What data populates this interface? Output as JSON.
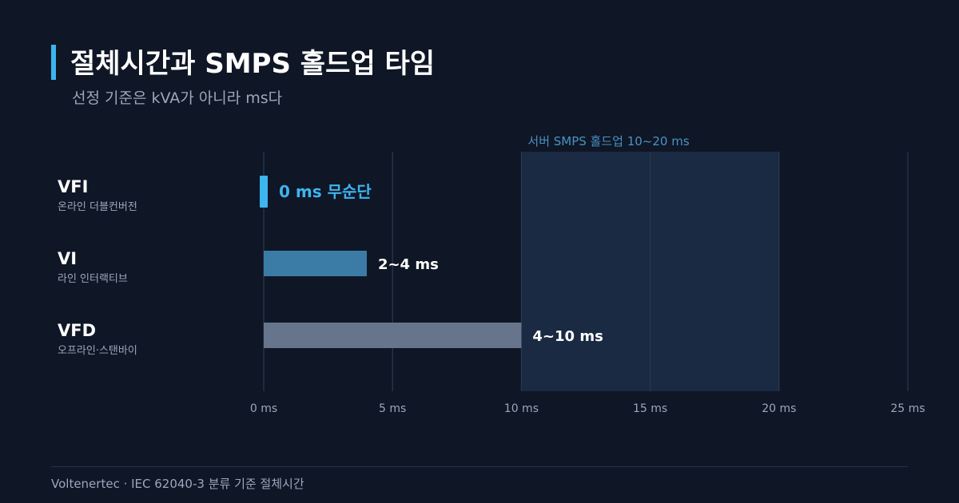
{
  "header": {
    "title": "절체시간과 SMPS 홀드업 타임",
    "subtitle": "선정 기준은 kVA가 아니라 ms다"
  },
  "footer": {
    "text": "Voltenertec · IEC 62040-3 분류 기준 절체시간"
  },
  "colors": {
    "background": "#0f1626",
    "accent": "#3db5ef",
    "band": "#1a2a42",
    "band_label": "#4a93c4",
    "grid": "#2c3950",
    "tick": "#9aa8bb",
    "vfi": "#3db5ef",
    "vi": "#3b7ca6",
    "vfd": "#66758c"
  },
  "chart_data": {
    "type": "bar",
    "orientation": "horizontal",
    "unit": "ms",
    "xlim": [
      0,
      25
    ],
    "ticks": [
      0,
      5,
      10,
      15,
      20,
      25
    ],
    "tick_labels": [
      "0 ms",
      "5 ms",
      "10 ms",
      "15 ms",
      "20 ms",
      "25 ms"
    ],
    "grid": true,
    "band": {
      "label": "서버 SMPS 홀드업 10~20 ms",
      "from": 10,
      "to": 20
    },
    "categories": [
      {
        "name": "VFI",
        "sublabel": "온라인 더블컨버전",
        "value_label": "0 ms  무순단",
        "value": 0,
        "color": "#3db5ef"
      },
      {
        "name": "VI",
        "sublabel": "라인 인터랙티브",
        "value_label": "2~4 ms",
        "value": 4,
        "color": "#3b7ca6"
      },
      {
        "name": "VFD",
        "sublabel": "오프라인·스탠바이",
        "value_label": "4~10 ms",
        "value": 10,
        "color": "#66758c"
      }
    ]
  }
}
